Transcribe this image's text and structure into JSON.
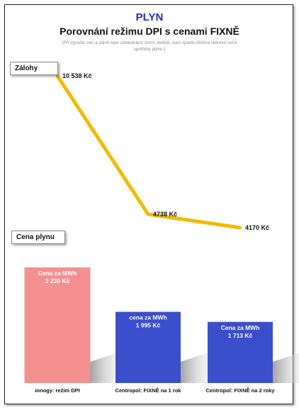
{
  "header": {
    "category": "PLYN",
    "title": "Porovnání režimu DPI s cenami FIXNĚ",
    "note_line1": "(Při výpočtu cen a záloh bylo zohledněno zimní období, kam spadá většina celkové roční",
    "note_line2": "spotřeby plynu.)"
  },
  "colors": {
    "category": "#1a2fb8",
    "line": "#f5b800",
    "bar_innogy": "#f59090",
    "bar_centropol": "#3b4fcc"
  },
  "chart_data": [
    {
      "type": "line",
      "title": "Zálohy",
      "categories": [
        "innogy: režim DPI",
        "Centropol: FIXNĚ na 1 rok",
        "Centropol: FIXNĚ na 2 roky"
      ],
      "values": [
        10538,
        4738,
        4170
      ],
      "value_labels": [
        "10 538 Kč",
        "4738 Kč",
        "4170 Kč"
      ]
    },
    {
      "type": "bar",
      "title": "Cena plynu",
      "categories": [
        "innogy: režim DPI",
        "Centropol: FIXNĚ na 1 rok",
        "Centropol: FIXNĚ na 2 roky"
      ],
      "values": [
        3239,
        1995,
        1713
      ],
      "bar_captions": [
        "Cena za MWh",
        "cena za MWh",
        "Cena za MWh"
      ],
      "value_labels": [
        "3 239 Kč",
        "1 995 Kč",
        "1 713 Kč"
      ]
    }
  ]
}
